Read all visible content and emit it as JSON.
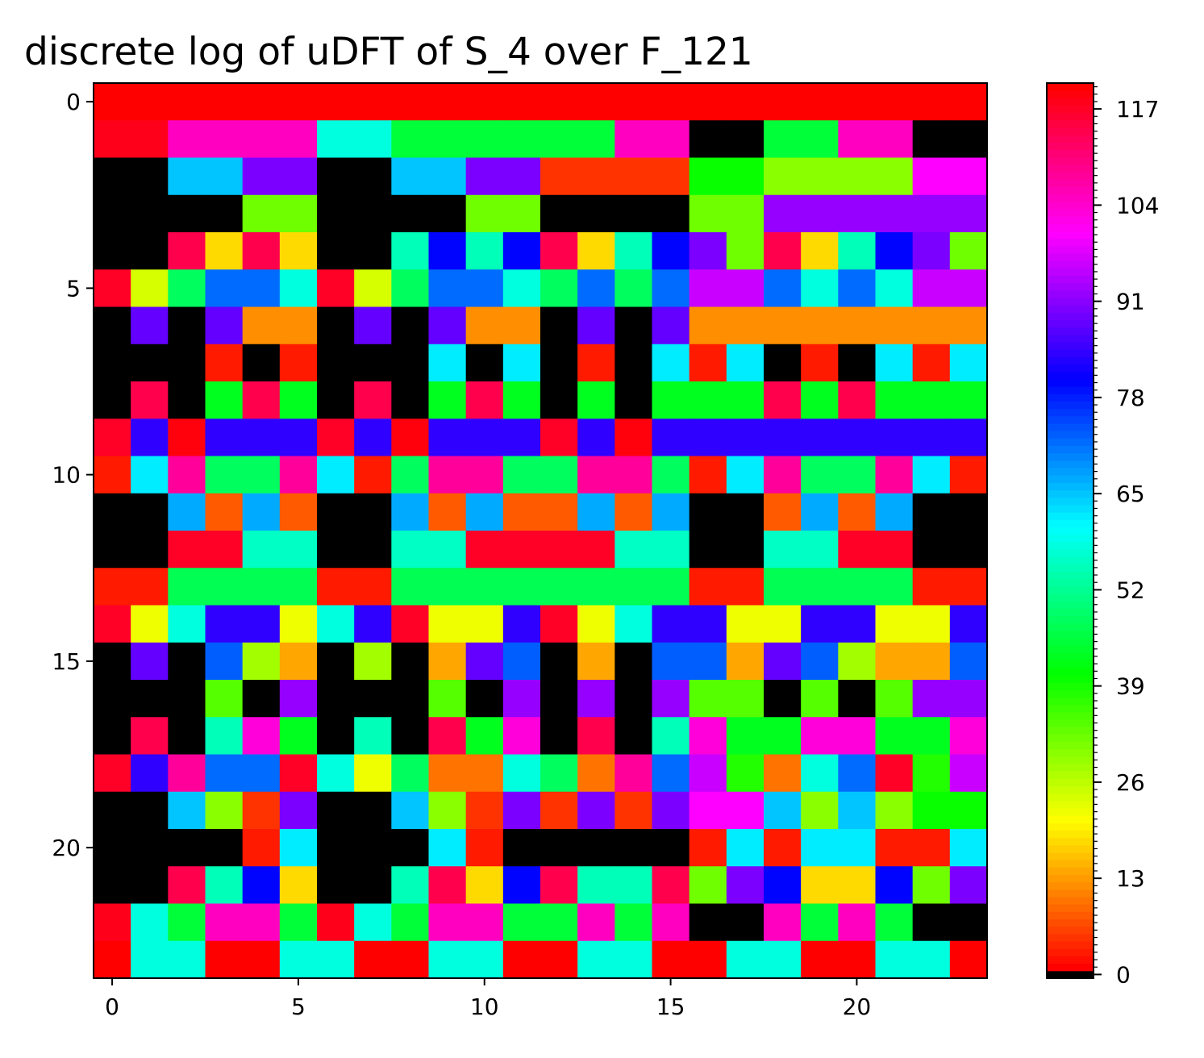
{
  "chart_data": {
    "type": "heatmap",
    "title": "discrete log of uDFT of S_4 over F_121",
    "xlabel": "",
    "ylabel": "",
    "x_ticks": [
      "0",
      "5",
      "10",
      "15",
      "20"
    ],
    "y_ticks": [
      "0",
      "5",
      "10",
      "15",
      "20"
    ],
    "colorbar_ticks": [
      "0",
      "13",
      "26",
      "39",
      "52",
      "65",
      "78",
      "91",
      "104",
      "117"
    ],
    "colormap": "hsv (value 0 drawn as black, value 1 at red through 120 at red)",
    "value_range": [
      0,
      120
    ],
    "rows": 24,
    "cols": 24,
    "grid": false,
    "z": [
      [
        120,
        120,
        120,
        120,
        120,
        120,
        120,
        120,
        120,
        120,
        120,
        120,
        120,
        120,
        120,
        120,
        120,
        120,
        120,
        120,
        120,
        120,
        120,
        120
      ],
      [
        118,
        118,
        105,
        105,
        105,
        105,
        58,
        58,
        45,
        45,
        45,
        45,
        45,
        45,
        105,
        105,
        0,
        0,
        45,
        45,
        105,
        105,
        0,
        0
      ],
      [
        0,
        0,
        65,
        65,
        90,
        90,
        0,
        0,
        65,
        65,
        90,
        90,
        5,
        5,
        5,
        5,
        40,
        40,
        30,
        30,
        30,
        30,
        100,
        100
      ],
      [
        0,
        0,
        0,
        0,
        32,
        32,
        0,
        0,
        0,
        0,
        32,
        32,
        0,
        0,
        0,
        0,
        32,
        32,
        92,
        92,
        92,
        92,
        92,
        92
      ],
      [
        0,
        0,
        114,
        18,
        114,
        18,
        0,
        0,
        55,
        80,
        55,
        80,
        114,
        18,
        55,
        80,
        90,
        32,
        114,
        18,
        55,
        80,
        90,
        32
      ],
      [
        117,
        24,
        48,
        72,
        72,
        58,
        117,
        24,
        48,
        72,
        72,
        58,
        48,
        72,
        48,
        72,
        96,
        96,
        72,
        58,
        72,
        58,
        96,
        96
      ],
      [
        0,
        88,
        0,
        88,
        12,
        12,
        0,
        88,
        0,
        88,
        12,
        12,
        0,
        88,
        0,
        88,
        12,
        12,
        12,
        12,
        12,
        12,
        12,
        12
      ],
      [
        0,
        0,
        0,
        3,
        0,
        3,
        0,
        0,
        0,
        62,
        0,
        62,
        0,
        3,
        0,
        62,
        3,
        62,
        0,
        3,
        0,
        62,
        3,
        62
      ],
      [
        0,
        114,
        0,
        43,
        114,
        43,
        0,
        114,
        0,
        43,
        114,
        43,
        0,
        43,
        0,
        43,
        43,
        43,
        114,
        43,
        114,
        43,
        43,
        43
      ],
      [
        117,
        84,
        119,
        84,
        84,
        84,
        117,
        84,
        119,
        84,
        84,
        84,
        117,
        84,
        119,
        84,
        84,
        84,
        84,
        84,
        84,
        84,
        84,
        84
      ],
      [
        3,
        62,
        108,
        48,
        48,
        108,
        62,
        3,
        48,
        108,
        108,
        48,
        48,
        108,
        108,
        48,
        3,
        62,
        108,
        48,
        48,
        108,
        62,
        3
      ],
      [
        0,
        0,
        67,
        8,
        67,
        8,
        0,
        0,
        67,
        8,
        67,
        8,
        8,
        67,
        8,
        67,
        0,
        0,
        8,
        67,
        8,
        67,
        0,
        0
      ],
      [
        0,
        0,
        117,
        117,
        56,
        56,
        0,
        0,
        56,
        56,
        117,
        117,
        117,
        117,
        56,
        56,
        0,
        0,
        56,
        56,
        117,
        117,
        0,
        0
      ],
      [
        3,
        3,
        47,
        47,
        47,
        47,
        3,
        3,
        47,
        47,
        47,
        47,
        47,
        47,
        47,
        47,
        3,
        3,
        47,
        47,
        47,
        47,
        3,
        3
      ],
      [
        117,
        22,
        58,
        84,
        84,
        22,
        58,
        84,
        117,
        22,
        22,
        84,
        117,
        22,
        58,
        84,
        84,
        22,
        22,
        84,
        84,
        22,
        22,
        84
      ],
      [
        0,
        88,
        0,
        73,
        28,
        14,
        0,
        28,
        0,
        14,
        88,
        73,
        0,
        14,
        0,
        73,
        73,
        14,
        88,
        73,
        28,
        14,
        14,
        73
      ],
      [
        0,
        0,
        0,
        34,
        0,
        92,
        0,
        0,
        0,
        34,
        0,
        92,
        0,
        92,
        0,
        92,
        34,
        34,
        0,
        34,
        0,
        34,
        92,
        92
      ],
      [
        0,
        114,
        0,
        55,
        103,
        43,
        0,
        55,
        0,
        114,
        43,
        103,
        0,
        114,
        0,
        55,
        103,
        43,
        43,
        103,
        103,
        43,
        43,
        103
      ],
      [
        117,
        84,
        108,
        72,
        72,
        117,
        58,
        22,
        48,
        10,
        10,
        58,
        48,
        10,
        108,
        72,
        96,
        38,
        10,
        58,
        72,
        117,
        38,
        96
      ],
      [
        0,
        0,
        65,
        30,
        5,
        90,
        0,
        0,
        65,
        30,
        5,
        90,
        5,
        90,
        5,
        90,
        100,
        100,
        65,
        30,
        65,
        30,
        40,
        40
      ],
      [
        0,
        0,
        0,
        0,
        3,
        62,
        0,
        0,
        0,
        62,
        3,
        0,
        0,
        0,
        0,
        0,
        3,
        62,
        3,
        62,
        62,
        3,
        3,
        62
      ],
      [
        0,
        0,
        114,
        55,
        80,
        18,
        0,
        0,
        55,
        114,
        18,
        80,
        114,
        55,
        55,
        114,
        32,
        90,
        80,
        18,
        18,
        80,
        32,
        90
      ],
      [
        118,
        58,
        45,
        105,
        105,
        45,
        118,
        58,
        45,
        105,
        105,
        45,
        45,
        105,
        45,
        105,
        0,
        0,
        105,
        45,
        105,
        45,
        0,
        0
      ],
      [
        120,
        58,
        58,
        120,
        120,
        58,
        58,
        120,
        120,
        58,
        58,
        120,
        120,
        58,
        58,
        120,
        120,
        58,
        58,
        120,
        120,
        58,
        58,
        120
      ]
    ]
  }
}
